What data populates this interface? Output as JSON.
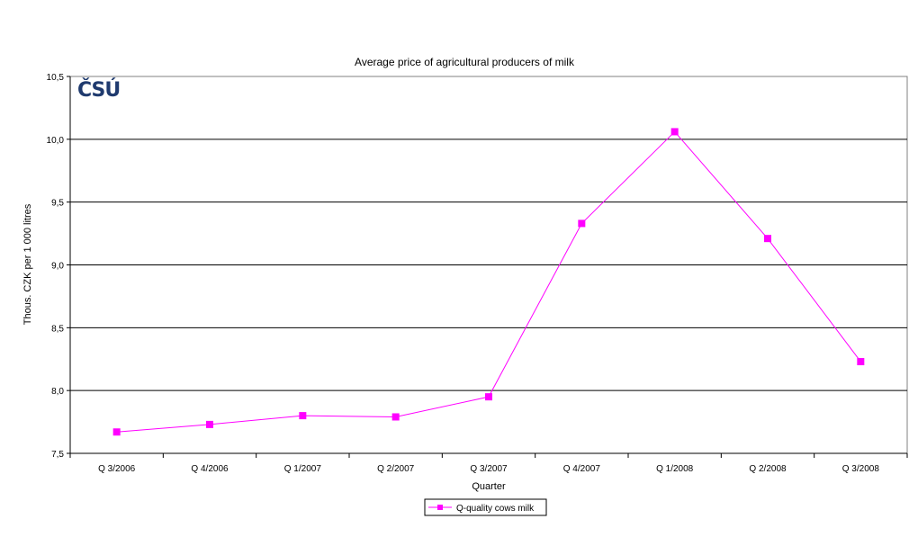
{
  "chart_data": {
    "type": "line",
    "title": "Average price of agricultural producers of milk",
    "xlabel": "Quarter",
    "ylabel": "Thous. CZK per 1 000 litres",
    "categories": [
      "Q 3/2006",
      "Q 4/2006",
      "Q 1/2007",
      "Q 2/2007",
      "Q 3/2007",
      "Q 4/2007",
      "Q 1/2008",
      "Q 2/2008",
      "Q 3/2008"
    ],
    "series": [
      {
        "name": "Q-quality cows milk",
        "color": "#ff00ff",
        "marker": "square",
        "values": [
          7.67,
          7.73,
          7.8,
          7.79,
          7.95,
          9.33,
          10.06,
          9.21,
          8.23
        ]
      }
    ],
    "ylim": [
      7.5,
      10.5
    ],
    "yticks": [
      7.5,
      8.0,
      8.5,
      9.0,
      9.5,
      10.0,
      10.5
    ],
    "ytick_labels": [
      "7,5",
      "8,0",
      "8,5",
      "9,0",
      "9,5",
      "10,0",
      "10,5"
    ],
    "grid": "horizontal major",
    "legend_position": "bottom-center"
  },
  "logo": {
    "text": "ČSÚ",
    "color": "#1f3a6e"
  },
  "colors": {
    "series": "#ff00ff",
    "grid": "#000000",
    "frame": "#808080"
  }
}
